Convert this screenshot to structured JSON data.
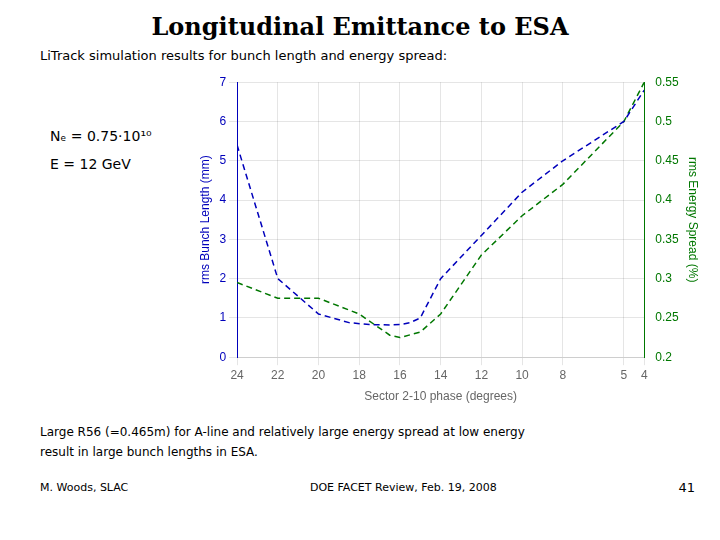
{
  "chart_data": {
    "type": "line",
    "title": "Longitudinal Emittance to ESA",
    "subtitle": "LiTrack simulation results for bunch length and energy spread:",
    "annotations": [
      "Nₑ = 0.75·10¹⁰",
      "E = 12 GeV",
      "Large R56 (=0.465m) for A-line and relatively large energy spread at low energy",
      "result in large bunch lengths in ESA.",
      "M. Woods, SLAC",
      "DOE FACET Review, Feb. 19, 2008",
      "41"
    ],
    "xlabel": "Sector 2-10 phase (degrees)",
    "ylabel": "rms Bunch Length (mm)",
    "y2label": "rms Energy Spread (%)",
    "xlim": [
      24,
      4
    ],
    "xticks": [
      24,
      22,
      20,
      18,
      16,
      14,
      12,
      10,
      8,
      5,
      4
    ],
    "ylim": [
      0,
      7
    ],
    "yticks": [
      0,
      1,
      2,
      3,
      4,
      5,
      6,
      7
    ],
    "y2lim": [
      0.2,
      0.55
    ],
    "y2ticks": [
      0.2,
      0.25,
      0.3,
      0.35,
      0.4,
      0.45,
      0.5,
      0.55
    ],
    "grid": true,
    "series": [
      {
        "name": "rms Bunch Length (mm)",
        "color": "#0000BB",
        "line_style": "dashed",
        "marker": "none",
        "x": [
          24,
          22,
          20,
          18.5,
          17.5,
          16.5,
          16,
          15.5,
          15,
          14,
          12,
          10,
          8,
          5,
          4
        ],
        "values": [
          5.4,
          2.0,
          1.1,
          0.88,
          0.83,
          0.82,
          0.83,
          0.88,
          1.0,
          2.0,
          3.1,
          4.2,
          5.0,
          6.0,
          6.8
        ]
      },
      {
        "name": "rms Energy Spread (%)",
        "color": "#007700",
        "line_style": "dashed",
        "marker": "none",
        "axis": "y2",
        "x": [
          24,
          22,
          20,
          18,
          17,
          16.5,
          16,
          15,
          14,
          12,
          10,
          8,
          5,
          4
        ],
        "values": [
          0.295,
          0.275,
          0.275,
          0.255,
          0.237,
          0.228,
          0.225,
          0.232,
          0.255,
          0.33,
          0.38,
          0.42,
          0.5,
          0.55
        ]
      }
    ]
  }
}
